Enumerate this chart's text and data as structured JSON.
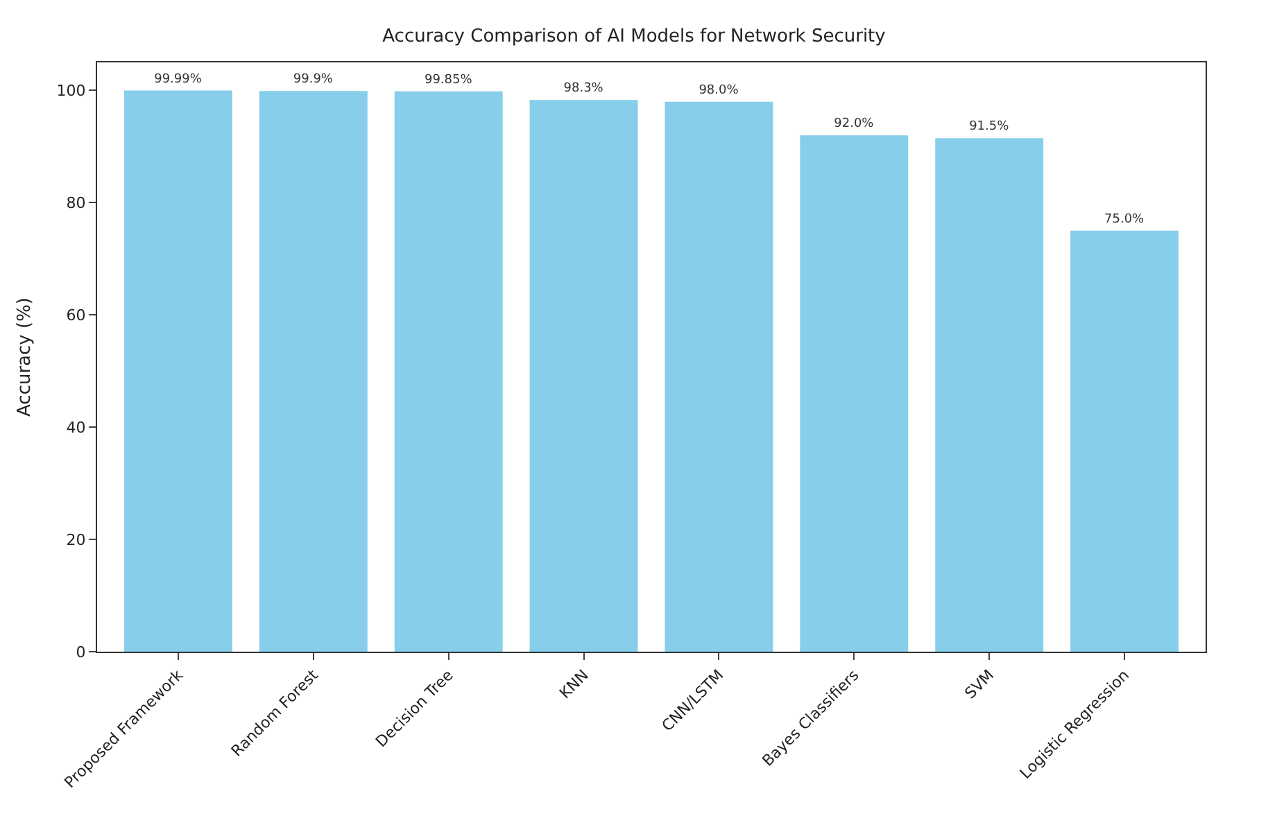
{
  "chart_data": {
    "type": "bar",
    "title": "Accuracy Comparison of AI Models for Network Security",
    "ylabel": "Accuracy (%)",
    "categories": [
      "Proposed Framework",
      "Random Forest",
      "Decision Tree",
      "KNN",
      "CNN/LSTM",
      "Bayes Classifiers",
      "SVM",
      "Logistic Regression"
    ],
    "values": [
      99.99,
      99.9,
      99.85,
      98.3,
      98.0,
      92.0,
      91.5,
      75.0
    ],
    "value_labels": [
      "99.99%",
      "99.9%",
      "99.85%",
      "98.3%",
      "98.0%",
      "92.0%",
      "91.5%",
      "75.0%"
    ],
    "color": "#87ceeb",
    "ylim": [
      0,
      105
    ],
    "yticks": [
      0,
      20,
      40,
      60,
      80,
      100
    ]
  }
}
